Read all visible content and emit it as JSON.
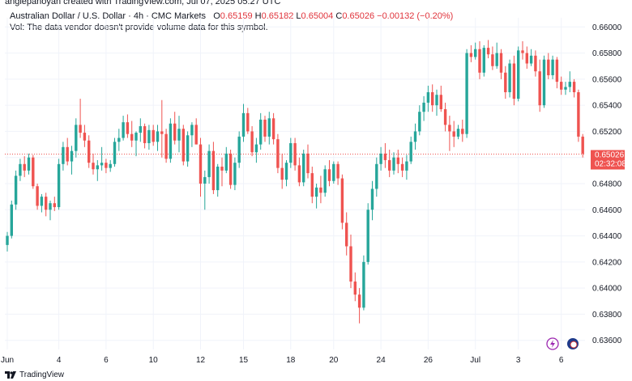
{
  "header": {
    "attribution": "anglepanoyan created with TradingView.com, Jul 07, 2025 05:27 UTC"
  },
  "legend": {
    "symbol": "Australian Dollar / U.S. Dollar · 4h · CMC Markets",
    "o_label": "O",
    "o_value": "0.65159",
    "h_label": "H",
    "h_value": "0.65182",
    "l_label": "L",
    "l_value": "0.65004",
    "c_label": "C",
    "c_value": "0.65026",
    "change": "−0.00132 (−0.20%)",
    "vol_note": "Vol: The data vendor doesn't provide volume data for this symbol."
  },
  "price_badge": {
    "price": "0.65026",
    "countdown": "02:32:08"
  },
  "footer": {
    "brand": "TradingView"
  },
  "colors": {
    "up": "#26a69a",
    "down": "#ef5350",
    "grid": "#f0f3fa",
    "current": "#ef5350"
  },
  "icons": [
    "lightning-icon",
    "flag-icon"
  ],
  "chart_data": {
    "type": "candlestick",
    "symbol": "AUDUSD",
    "interval": "4h",
    "y_ticks": [
      "0.66000",
      "0.65800",
      "0.65600",
      "0.65400",
      "0.65200",
      "0.65000",
      "0.64800",
      "0.64600",
      "0.64400",
      "0.64200",
      "0.64000",
      "0.63800",
      "0.63600"
    ],
    "ylim": [
      0.6353,
      0.6607
    ],
    "x_ticks": [
      {
        "label": "Jun",
        "index": 0
      },
      {
        "label": "4",
        "index": 12
      },
      {
        "label": "6",
        "index": 23
      },
      {
        "label": "10",
        "index": 34
      },
      {
        "label": "12",
        "index": 45
      },
      {
        "label": "15",
        "index": 55
      },
      {
        "label": "18",
        "index": 66
      },
      {
        "label": "20",
        "index": 76
      },
      {
        "label": "24",
        "index": 87
      },
      {
        "label": "26",
        "index": 98
      },
      {
        "label": "Jul",
        "index": 109
      },
      {
        "label": "3",
        "index": 119
      },
      {
        "label": "6",
        "index": 129
      }
    ],
    "current_price": 0.65026,
    "candles": [
      [
        0.6433,
        0.6443,
        0.6428,
        0.644
      ],
      [
        0.644,
        0.6467,
        0.6438,
        0.6464
      ],
      [
        0.6464,
        0.649,
        0.646,
        0.6486
      ],
      [
        0.6486,
        0.6499,
        0.6482,
        0.6495
      ],
      [
        0.6495,
        0.6501,
        0.6485,
        0.649
      ],
      [
        0.649,
        0.6503,
        0.6487,
        0.65
      ],
      [
        0.65,
        0.6502,
        0.6476,
        0.6478
      ],
      [
        0.6478,
        0.648,
        0.646,
        0.6463
      ],
      [
        0.6463,
        0.6472,
        0.6458,
        0.647
      ],
      [
        0.647,
        0.6473,
        0.6455,
        0.646
      ],
      [
        0.646,
        0.6467,
        0.6452,
        0.6465
      ],
      [
        0.6465,
        0.647,
        0.6459,
        0.6462
      ],
      [
        0.6462,
        0.6499,
        0.646,
        0.6495
      ],
      [
        0.6495,
        0.6512,
        0.649,
        0.6508
      ],
      [
        0.6508,
        0.6515,
        0.6494,
        0.6497
      ],
      [
        0.6497,
        0.6509,
        0.6487,
        0.6505
      ],
      [
        0.6505,
        0.653,
        0.65,
        0.6525
      ],
      [
        0.6525,
        0.6545,
        0.6515,
        0.6519
      ],
      [
        0.6519,
        0.6525,
        0.6508,
        0.6513
      ],
      [
        0.6513,
        0.6517,
        0.6492,
        0.6496
      ],
      [
        0.6496,
        0.6503,
        0.6487,
        0.6491
      ],
      [
        0.6491,
        0.6498,
        0.6482,
        0.6494
      ],
      [
        0.6494,
        0.6508,
        0.649,
        0.6496
      ],
      [
        0.6496,
        0.6499,
        0.6488,
        0.6492
      ],
      [
        0.6492,
        0.6498,
        0.6489,
        0.6495
      ],
      [
        0.6495,
        0.6515,
        0.6493,
        0.6512
      ],
      [
        0.6512,
        0.6522,
        0.6505,
        0.6515
      ],
      [
        0.6515,
        0.6532,
        0.6513,
        0.6527
      ],
      [
        0.6527,
        0.6533,
        0.6515,
        0.6518
      ],
      [
        0.6518,
        0.6528,
        0.6508,
        0.6513
      ],
      [
        0.6513,
        0.652,
        0.6501,
        0.6519
      ],
      [
        0.6519,
        0.653,
        0.6512,
        0.6524
      ],
      [
        0.6524,
        0.6526,
        0.6507,
        0.6511
      ],
      [
        0.6511,
        0.6525,
        0.6506,
        0.6521
      ],
      [
        0.6521,
        0.6525,
        0.6509,
        0.6512
      ],
      [
        0.6512,
        0.6525,
        0.6505,
        0.652
      ],
      [
        0.652,
        0.6544,
        0.65,
        0.6518
      ],
      [
        0.6518,
        0.6522,
        0.6496,
        0.6499
      ],
      [
        0.6499,
        0.653,
        0.6496,
        0.6526
      ],
      [
        0.6526,
        0.6535,
        0.651,
        0.6513
      ],
      [
        0.6513,
        0.6532,
        0.6504,
        0.6522
      ],
      [
        0.6522,
        0.6525,
        0.6494,
        0.6497
      ],
      [
        0.6497,
        0.652,
        0.6493,
        0.6517
      ],
      [
        0.6517,
        0.6527,
        0.6508,
        0.6525
      ],
      [
        0.6525,
        0.653,
        0.651,
        0.651
      ],
      [
        0.651,
        0.6515,
        0.647,
        0.648
      ],
      [
        0.648,
        0.649,
        0.646,
        0.6485
      ],
      [
        0.6485,
        0.651,
        0.648,
        0.6505
      ],
      [
        0.6505,
        0.6512,
        0.6472,
        0.6475
      ],
      [
        0.6475,
        0.6495,
        0.647,
        0.6493
      ],
      [
        0.6493,
        0.65,
        0.6478,
        0.649
      ],
      [
        0.649,
        0.6508,
        0.6488,
        0.6503
      ],
      [
        0.6503,
        0.6506,
        0.6476,
        0.6479
      ],
      [
        0.6479,
        0.65,
        0.6475,
        0.6496
      ],
      [
        0.6496,
        0.652,
        0.6492,
        0.6516
      ],
      [
        0.6516,
        0.6541,
        0.6512,
        0.6534
      ],
      [
        0.6534,
        0.6538,
        0.6518,
        0.652
      ],
      [
        0.652,
        0.6524,
        0.6501,
        0.6504
      ],
      [
        0.6504,
        0.6515,
        0.6496,
        0.651
      ],
      [
        0.651,
        0.6534,
        0.6506,
        0.6529
      ],
      [
        0.6529,
        0.6532,
        0.6512,
        0.6516
      ],
      [
        0.6516,
        0.6535,
        0.651,
        0.653
      ],
      [
        0.653,
        0.6534,
        0.651,
        0.6514
      ],
      [
        0.6514,
        0.6518,
        0.6488,
        0.6492
      ],
      [
        0.6492,
        0.6503,
        0.6476,
        0.6483
      ],
      [
        0.6483,
        0.6498,
        0.6478,
        0.6496
      ],
      [
        0.6496,
        0.6515,
        0.6492,
        0.6511
      ],
      [
        0.6511,
        0.6515,
        0.649,
        0.6494
      ],
      [
        0.6494,
        0.65,
        0.6478,
        0.6481
      ],
      [
        0.6481,
        0.6506,
        0.6478,
        0.6503
      ],
      [
        0.6503,
        0.651,
        0.6484,
        0.6488
      ],
      [
        0.6488,
        0.6493,
        0.6465,
        0.647
      ],
      [
        0.647,
        0.648,
        0.6461,
        0.6477
      ],
      [
        0.6477,
        0.6486,
        0.6465,
        0.6473
      ],
      [
        0.6473,
        0.6494,
        0.647,
        0.6491
      ],
      [
        0.6491,
        0.6498,
        0.6478,
        0.6482
      ],
      [
        0.6482,
        0.6497,
        0.648,
        0.6495
      ],
      [
        0.6495,
        0.6497,
        0.6479,
        0.6484
      ],
      [
        0.6484,
        0.6487,
        0.6445,
        0.645
      ],
      [
        0.645,
        0.6458,
        0.6425,
        0.6432
      ],
      [
        0.6432,
        0.6441,
        0.64,
        0.6405
      ],
      [
        0.6405,
        0.6412,
        0.639,
        0.6395
      ],
      [
        0.6395,
        0.64,
        0.6373,
        0.6385
      ],
      [
        0.6385,
        0.6425,
        0.6383,
        0.642
      ],
      [
        0.642,
        0.6465,
        0.6418,
        0.646
      ],
      [
        0.646,
        0.6482,
        0.6452,
        0.6476
      ],
      [
        0.6476,
        0.65,
        0.647,
        0.6495
      ],
      [
        0.6495,
        0.6508,
        0.649,
        0.6503
      ],
      [
        0.6503,
        0.6511,
        0.6492,
        0.6498
      ],
      [
        0.6498,
        0.6506,
        0.6485,
        0.649
      ],
      [
        0.649,
        0.6504,
        0.6487,
        0.65
      ],
      [
        0.65,
        0.6506,
        0.6488,
        0.6495
      ],
      [
        0.6495,
        0.65,
        0.6485,
        0.649
      ],
      [
        0.649,
        0.6502,
        0.6483,
        0.6497
      ],
      [
        0.6497,
        0.6516,
        0.6495,
        0.6512
      ],
      [
        0.6512,
        0.6526,
        0.6506,
        0.652
      ],
      [
        0.652,
        0.654,
        0.6517,
        0.6535
      ],
      [
        0.6535,
        0.6547,
        0.6528,
        0.6542
      ],
      [
        0.6542,
        0.6555,
        0.6535,
        0.655
      ],
      [
        0.655,
        0.6556,
        0.6535,
        0.654
      ],
      [
        0.654,
        0.6552,
        0.6532,
        0.6548
      ],
      [
        0.6548,
        0.6555,
        0.6535,
        0.6537
      ],
      [
        0.6537,
        0.6542,
        0.652,
        0.6525
      ],
      [
        0.6525,
        0.6532,
        0.6505,
        0.652
      ],
      [
        0.652,
        0.6528,
        0.6508,
        0.6516
      ],
      [
        0.6516,
        0.6525,
        0.6514,
        0.6522
      ],
      [
        0.6522,
        0.6529,
        0.6512,
        0.6518
      ],
      [
        0.6518,
        0.6583,
        0.6515,
        0.658
      ],
      [
        0.658,
        0.6586,
        0.6573,
        0.6577
      ],
      [
        0.6577,
        0.6588,
        0.6575,
        0.6583
      ],
      [
        0.6583,
        0.6589,
        0.656,
        0.6565
      ],
      [
        0.6565,
        0.6586,
        0.6562,
        0.6584
      ],
      [
        0.6584,
        0.659,
        0.6576,
        0.6579
      ],
      [
        0.6579,
        0.6585,
        0.6567,
        0.657
      ],
      [
        0.657,
        0.6588,
        0.6568,
        0.658
      ],
      [
        0.658,
        0.6583,
        0.656,
        0.6565
      ],
      [
        0.6565,
        0.657,
        0.6545,
        0.655
      ],
      [
        0.655,
        0.6575,
        0.6546,
        0.6572
      ],
      [
        0.6572,
        0.6578,
        0.654,
        0.6545
      ],
      [
        0.6545,
        0.6585,
        0.6543,
        0.6582
      ],
      [
        0.6582,
        0.6589,
        0.6575,
        0.658
      ],
      [
        0.658,
        0.6585,
        0.6568,
        0.6572
      ],
      [
        0.6572,
        0.6583,
        0.657,
        0.6578
      ],
      [
        0.6578,
        0.6582,
        0.6562,
        0.6566
      ],
      [
        0.6566,
        0.6575,
        0.6535,
        0.654
      ],
      [
        0.654,
        0.6578,
        0.6538,
        0.6575
      ],
      [
        0.6575,
        0.658,
        0.656,
        0.6563
      ],
      [
        0.6563,
        0.6578,
        0.656,
        0.6575
      ],
      [
        0.6575,
        0.6577,
        0.6553,
        0.6558
      ],
      [
        0.6558,
        0.6562,
        0.6548,
        0.6552
      ],
      [
        0.6552,
        0.6558,
        0.6548,
        0.6554
      ],
      [
        0.6554,
        0.6566,
        0.655,
        0.6558
      ],
      [
        0.6558,
        0.656,
        0.6546,
        0.655
      ],
      [
        0.655,
        0.6552,
        0.6512,
        0.6516
      ],
      [
        0.6516,
        0.6518,
        0.65,
        0.6503
      ]
    ],
    "candle_format": [
      "open",
      "high",
      "low",
      "close"
    ],
    "grid": true
  }
}
